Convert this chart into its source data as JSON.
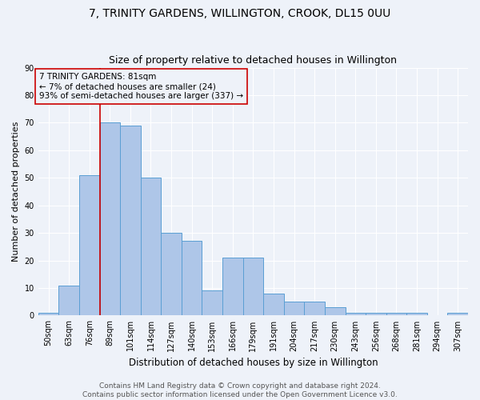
{
  "title": "7, TRINITY GARDENS, WILLINGTON, CROOK, DL15 0UU",
  "subtitle": "Size of property relative to detached houses in Willington",
  "xlabel": "Distribution of detached houses by size in Willington",
  "ylabel": "Number of detached properties",
  "categories": [
    "50sqm",
    "63sqm",
    "76sqm",
    "89sqm",
    "101sqm",
    "114sqm",
    "127sqm",
    "140sqm",
    "153sqm",
    "166sqm",
    "179sqm",
    "191sqm",
    "204sqm",
    "217sqm",
    "230sqm",
    "243sqm",
    "256sqm",
    "268sqm",
    "281sqm",
    "294sqm",
    "307sqm"
  ],
  "values": [
    1,
    11,
    51,
    70,
    69,
    50,
    30,
    27,
    9,
    21,
    21,
    8,
    5,
    5,
    3,
    1,
    1,
    1,
    1,
    0,
    1
  ],
  "bar_color": "#aec6e8",
  "bar_edge_color": "#5a9fd4",
  "annotation_box_text": "7 TRINITY GARDENS: 81sqm\n← 7% of detached houses are smaller (24)\n93% of semi-detached houses are larger (337) →",
  "vline_x": 2.5,
  "vline_color": "#cc0000",
  "box_edge_color": "#cc0000",
  "yticks": [
    0,
    10,
    20,
    30,
    40,
    50,
    60,
    70,
    80,
    90
  ],
  "ylim": [
    0,
    90
  ],
  "background_color": "#eef2f9",
  "grid_color": "#ffffff",
  "footer_line1": "Contains HM Land Registry data © Crown copyright and database right 2024.",
  "footer_line2": "Contains public sector information licensed under the Open Government Licence v3.0.",
  "title_fontsize": 10,
  "subtitle_fontsize": 9,
  "xlabel_fontsize": 8.5,
  "ylabel_fontsize": 8,
  "tick_fontsize": 7,
  "annotation_fontsize": 7.5,
  "footer_fontsize": 6.5
}
